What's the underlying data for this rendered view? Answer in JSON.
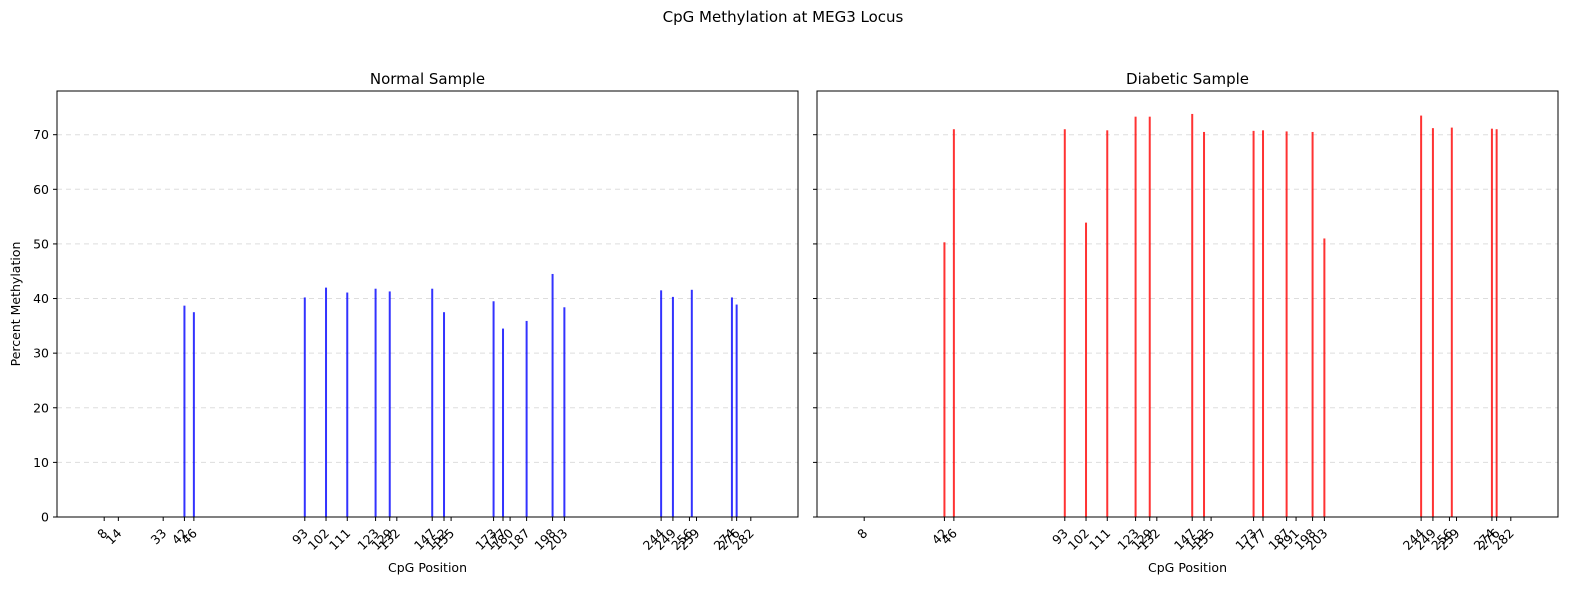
{
  "figure": {
    "suptitle": "CpG Methylation at MEG3 Locus"
  },
  "chart_data": [
    {
      "type": "bar",
      "title": "Normal Sample",
      "xlabel": "CpG Position",
      "ylabel": "Percent Methylation",
      "ylim": [
        0,
        78
      ],
      "xlim": [
        -12,
        302
      ],
      "y_ticks": [
        0,
        10,
        20,
        30,
        40,
        50,
        60,
        70
      ],
      "grid": "y, dashed",
      "color": "#0000ff",
      "x_ticks": [
        8,
        14,
        33,
        42,
        46,
        93,
        102,
        111,
        123,
        129,
        132,
        147,
        152,
        155,
        173,
        177,
        180,
        187,
        198,
        203,
        244,
        249,
        256,
        259,
        274,
        276,
        282
      ],
      "x": [
        42,
        46,
        93,
        102,
        111,
        123,
        129,
        147,
        152,
        173,
        177,
        187,
        198,
        203,
        244,
        249,
        257,
        274,
        276
      ],
      "values": [
        38.7,
        37.5,
        40.2,
        42.0,
        41.1,
        41.8,
        41.3,
        41.8,
        37.5,
        39.5,
        34.5,
        35.9,
        44.5,
        38.4,
        41.5,
        40.3,
        41.6,
        40.2,
        38.9
      ]
    },
    {
      "type": "bar",
      "title": "Diabetic Sample",
      "xlabel": "CpG Position",
      "ylabel": "",
      "ylim": [
        0,
        78
      ],
      "xlim": [
        -12,
        302
      ],
      "y_ticks": [
        0,
        10,
        20,
        30,
        40,
        50,
        60,
        70
      ],
      "grid": "y, dashed",
      "color": "#ff0000",
      "x_ticks": [
        8,
        42,
        46,
        93,
        102,
        111,
        123,
        129,
        132,
        147,
        152,
        155,
        173,
        177,
        187,
        191,
        198,
        203,
        244,
        249,
        256,
        259,
        274,
        276,
        282
      ],
      "x": [
        42,
        46,
        93,
        102,
        111,
        123,
        129,
        147,
        152,
        173,
        177,
        187,
        198,
        203,
        244,
        249,
        257,
        274,
        276
      ],
      "values": [
        50.3,
        71.0,
        71.0,
        53.9,
        70.8,
        73.3,
        73.3,
        73.8,
        70.5,
        70.7,
        70.8,
        70.6,
        70.5,
        51.0,
        73.5,
        71.2,
        71.3,
        71.1,
        71.0
      ]
    }
  ]
}
